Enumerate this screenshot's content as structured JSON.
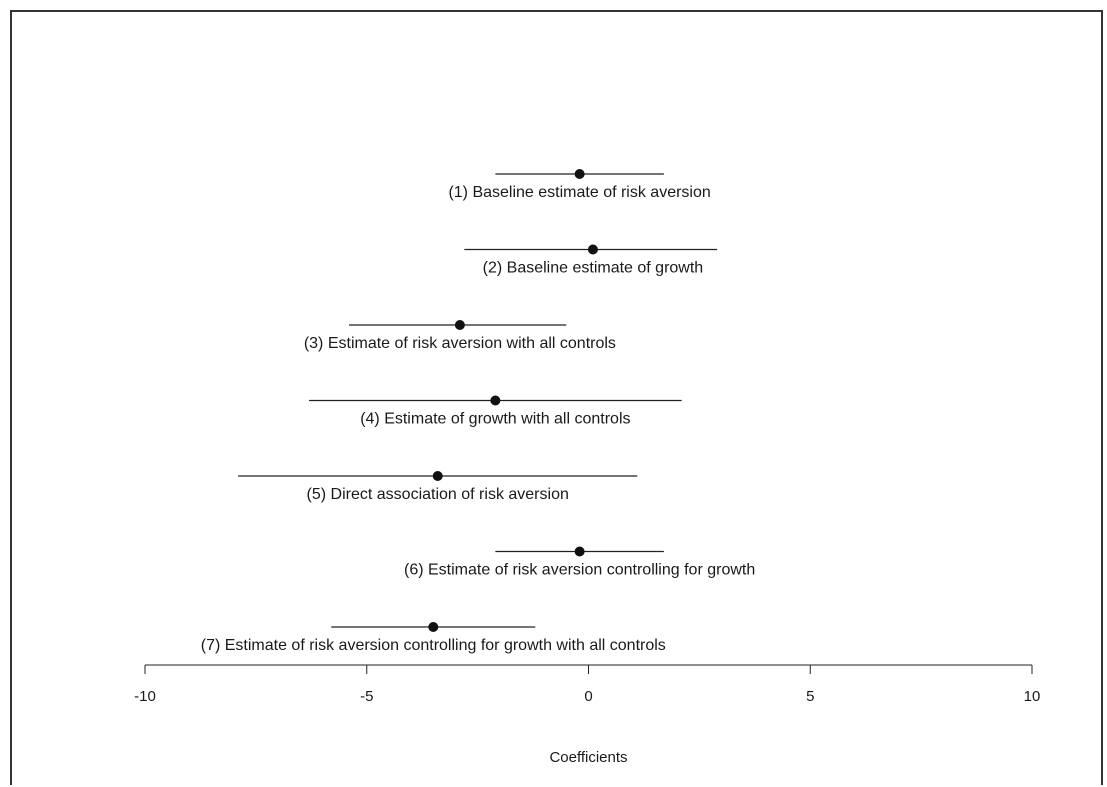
{
  "chart_data": {
    "type": "scatter",
    "title": "",
    "xlabel": "Coefficients",
    "ylabel": "",
    "xlim": [
      -10,
      10
    ],
    "x_ticks": [
      -10,
      -5,
      0,
      5,
      10
    ],
    "x_tick_labels": [
      "-10",
      "-5",
      "0",
      "5",
      "10"
    ],
    "grid": false,
    "legend": "none",
    "point_color": "#111111",
    "estimates": [
      {
        "label": "(1) Baseline estimate of risk aversion",
        "estimate": -0.2,
        "lower": -2.1,
        "upper": 1.7
      },
      {
        "label": "(2) Baseline estimate of growth",
        "estimate": 0.1,
        "lower": -2.8,
        "upper": 2.9
      },
      {
        "label": "(3) Estimate of risk aversion with all controls",
        "estimate": -2.9,
        "lower": -5.4,
        "upper": -0.5
      },
      {
        "label": "(4) Estimate of growth with all controls",
        "estimate": -2.1,
        "lower": -6.3,
        "upper": 2.1
      },
      {
        "label": "(5) Direct association of risk aversion",
        "estimate": -3.4,
        "lower": -7.9,
        "upper": 1.1
      },
      {
        "label": "(6) Estimate of risk aversion controlling for growth",
        "estimate": -0.2,
        "lower": -2.1,
        "upper": 1.7
      },
      {
        "label": "(7) Estimate of risk aversion controlling for growth with all controls",
        "estimate": -3.5,
        "lower": -5.8,
        "upper": -1.2
      }
    ]
  }
}
